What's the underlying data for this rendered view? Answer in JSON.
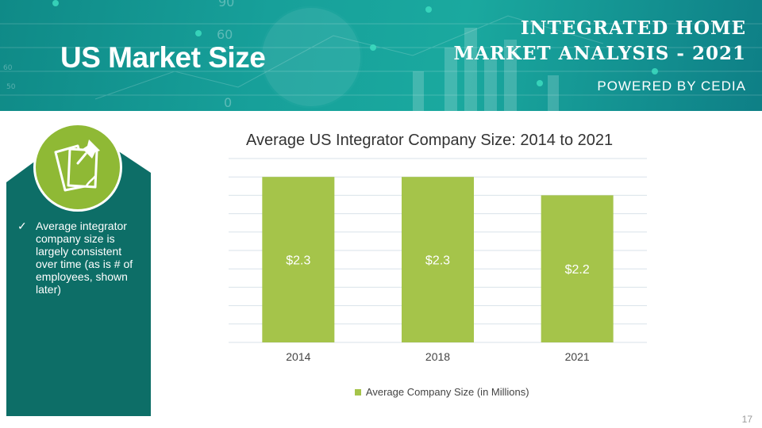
{
  "header": {
    "page_title": "US Market Size",
    "report_title_line1": "INTEGRATED HOME",
    "report_title_line2": "MARKET ANALYSIS - 2021",
    "powered_by": "POWERED BY CEDIA",
    "bg_numbers": [
      "90",
      "60",
      "0",
      "60",
      "50"
    ]
  },
  "side_panel": {
    "icon": "sticky-note-pin-icon",
    "bullet_icon": "check-icon",
    "bullet_mark": "✓",
    "bullet": "Average integrator company size is largely consistent over time (as is # of employees, shown later)"
  },
  "chart_data": {
    "type": "bar",
    "title": "Average US Integrator Company Size: 2014 to 2021",
    "categories": [
      "2014",
      "2018",
      "2021"
    ],
    "series": [
      {
        "name": "Average Company Size (in Millions)",
        "values": [
          2.3,
          2.3,
          2.2
        ],
        "labels": [
          "$2.3",
          "$2.3",
          "$2.2"
        ]
      }
    ],
    "ylim": [
      1.4,
      2.4
    ],
    "gridlines": 10,
    "grid": true,
    "legend": "bottom",
    "bar_color": "#a5c44a"
  },
  "page_number": "17",
  "colors": {
    "teal_dark": "#0d6e67",
    "teal_header": "#17a09a",
    "green": "#8fb935",
    "bar": "#a5c44a"
  }
}
